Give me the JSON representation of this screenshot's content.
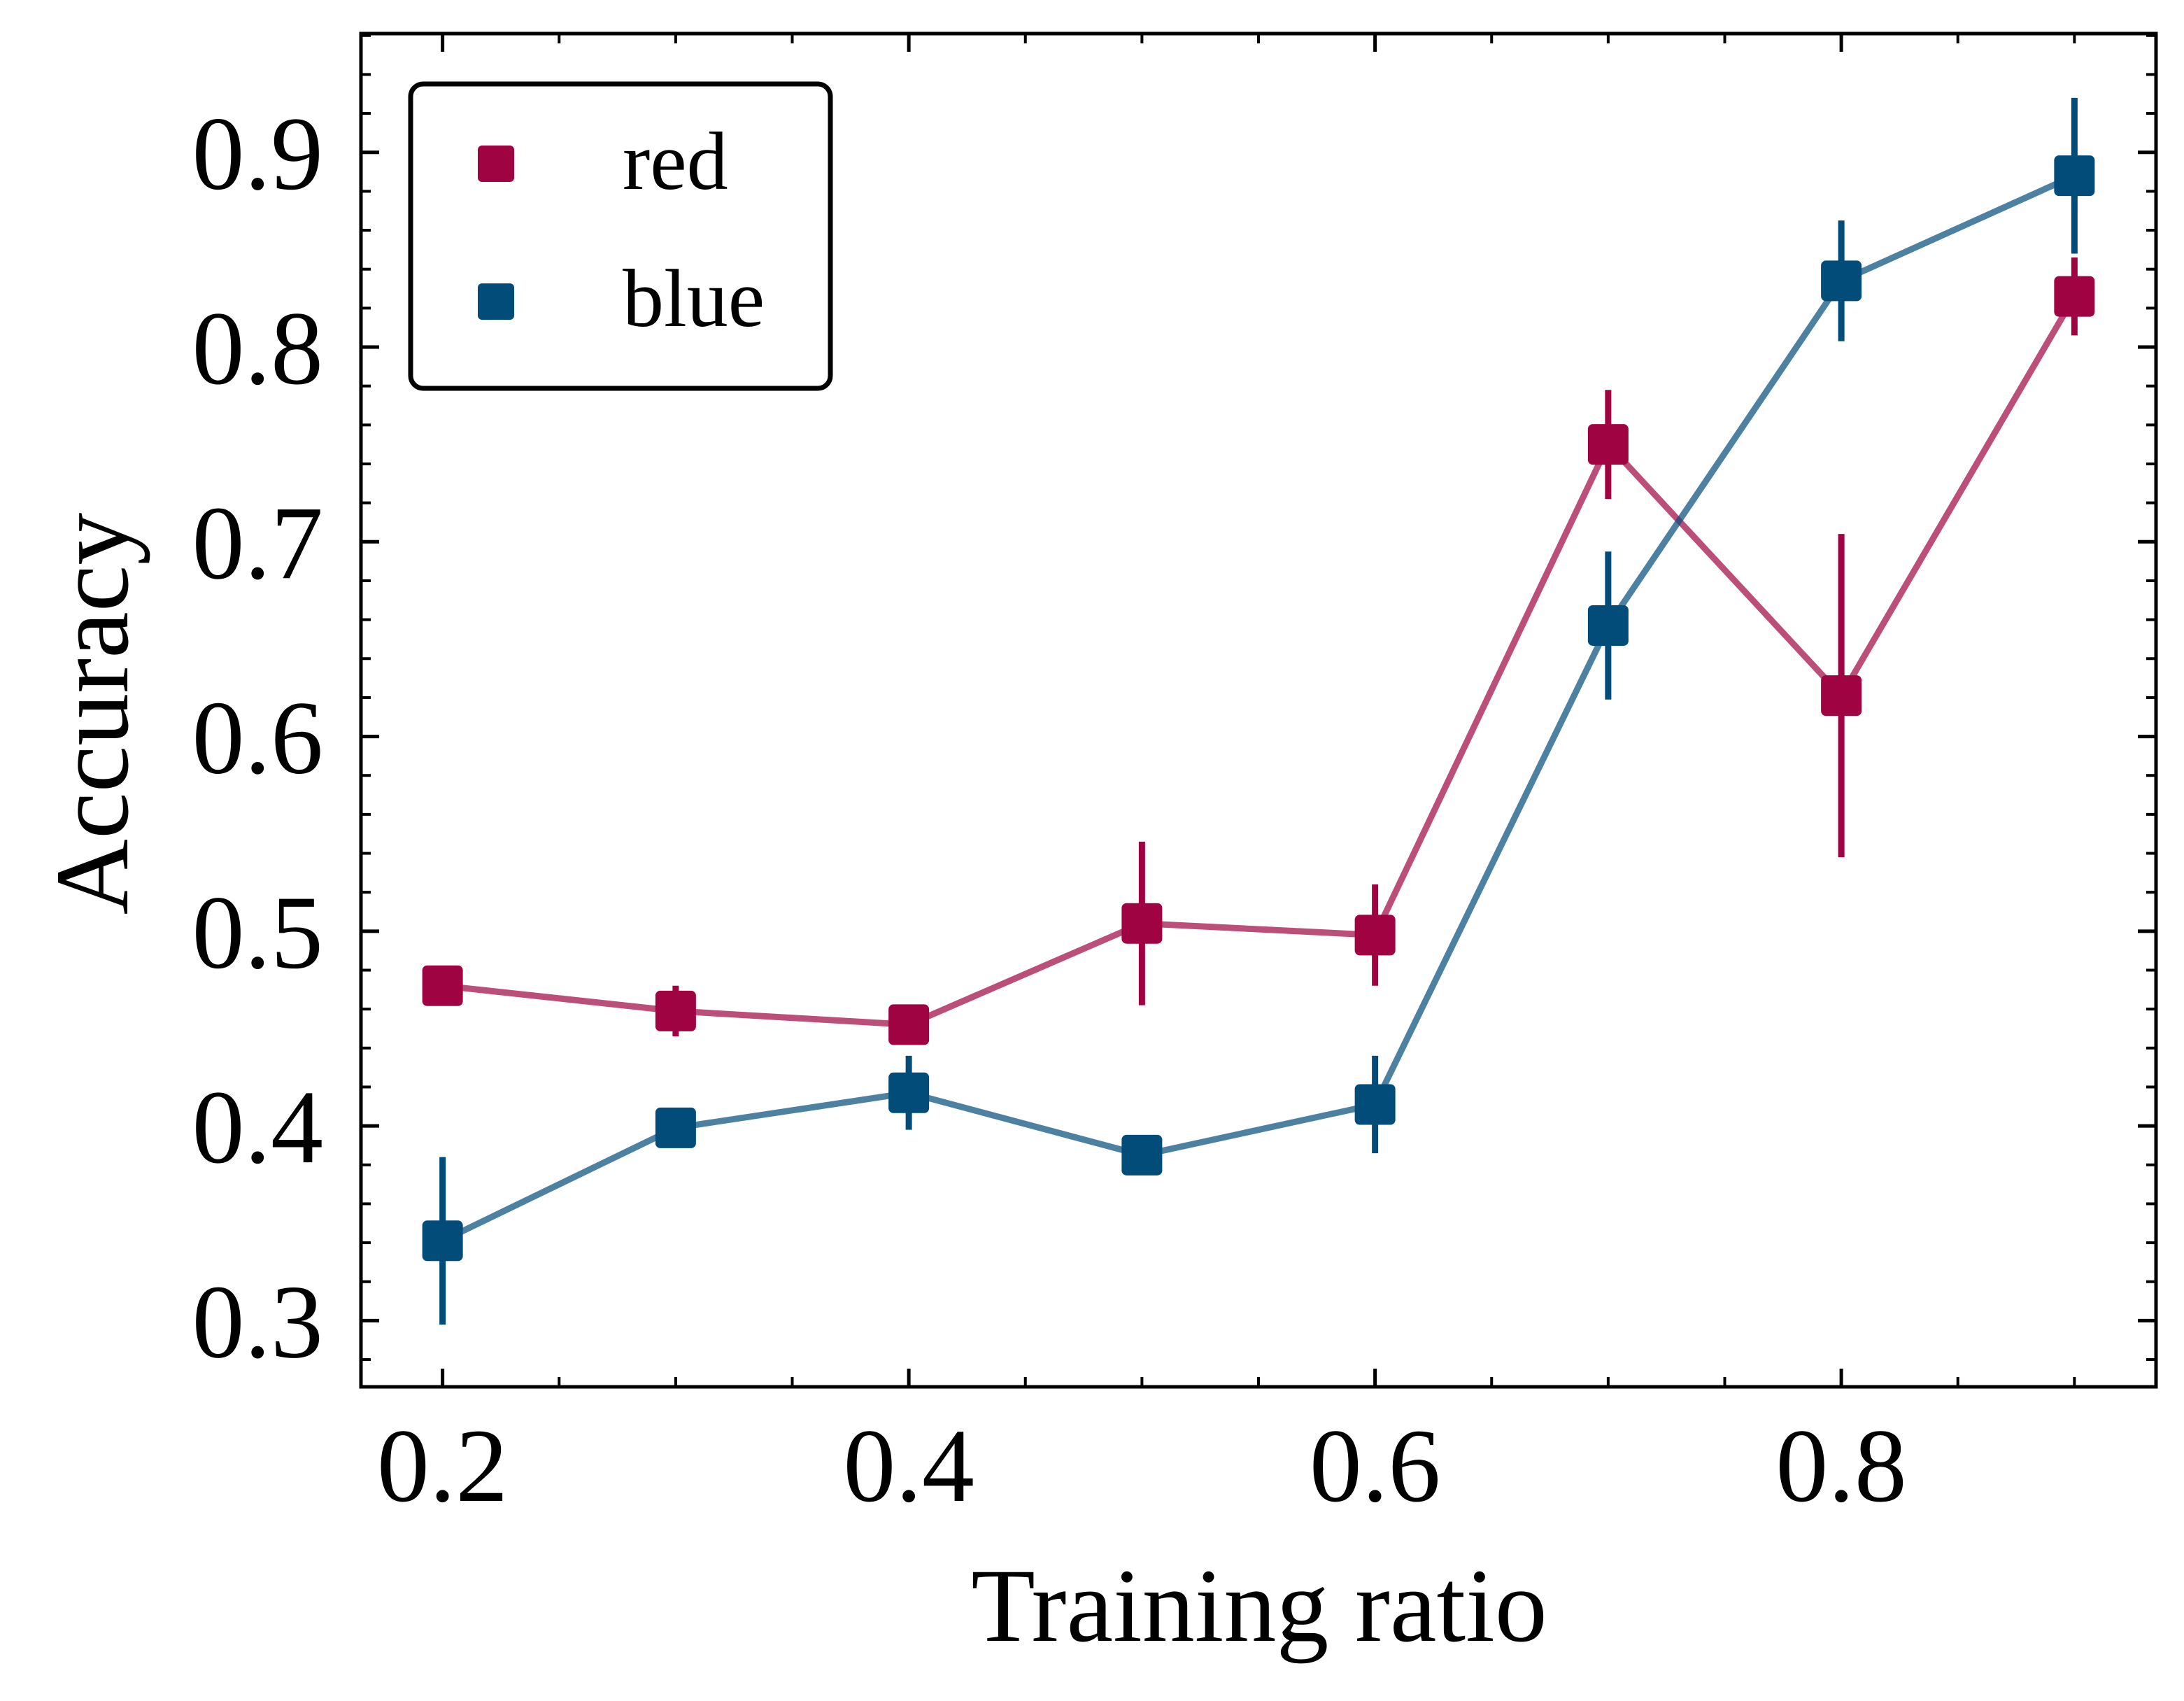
{
  "chart_data": {
    "type": "line",
    "xlabel": "Training ratio",
    "ylabel": "Accuracy",
    "xlim": [
      0.165,
      0.935
    ],
    "ylim": [
      0.266,
      0.961
    ],
    "x_ticks": [
      0.2,
      0.4,
      0.6,
      0.8
    ],
    "x_tick_labels": [
      "0.2",
      "0.4",
      "0.6",
      "0.8"
    ],
    "x_minor_ticks": [
      0.25,
      0.3,
      0.35,
      0.45,
      0.5,
      0.55,
      0.65,
      0.7,
      0.75,
      0.85,
      0.9
    ],
    "y_ticks": [
      0.3,
      0.4,
      0.5,
      0.6,
      0.7,
      0.8,
      0.9
    ],
    "y_tick_labels": [
      "0.3",
      "0.4",
      "0.5",
      "0.6",
      "0.7",
      "0.8",
      "0.9"
    ],
    "y_minor_step": 0.02,
    "grid": false,
    "legend_position": "top-left",
    "x": [
      0.2,
      0.3,
      0.4,
      0.5,
      0.6,
      0.7,
      0.8,
      0.9
    ],
    "series": [
      {
        "name": "red",
        "color": "#A00342",
        "values": [
          0.472,
          0.459,
          0.452,
          0.504,
          0.498,
          0.75,
          0.621,
          0.826
        ],
        "errors": [
          0.003,
          0.013,
          0.003,
          0.042,
          0.026,
          0.028,
          0.083,
          0.02
        ]
      },
      {
        "name": "blue",
        "color": "#024C7A",
        "values": [
          0.341,
          0.399,
          0.417,
          0.385,
          0.411,
          0.657,
          0.834,
          0.888
        ],
        "errors": [
          0.043,
          0.003,
          0.019,
          0.01,
          0.025,
          0.038,
          0.031,
          0.04
        ]
      }
    ]
  }
}
